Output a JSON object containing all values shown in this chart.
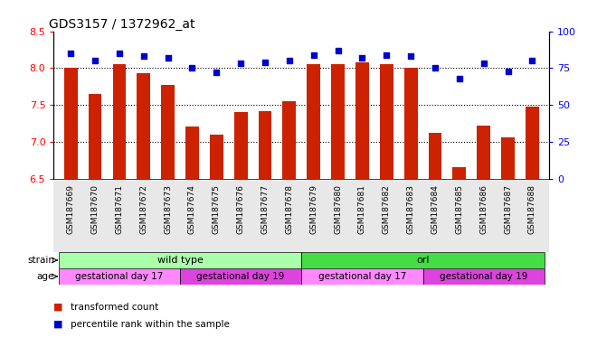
{
  "title": "GDS3157 / 1372962_at",
  "samples": [
    "GSM187669",
    "GSM187670",
    "GSM187671",
    "GSM187672",
    "GSM187673",
    "GSM187674",
    "GSM187675",
    "GSM187676",
    "GSM187677",
    "GSM187678",
    "GSM187679",
    "GSM187680",
    "GSM187681",
    "GSM187682",
    "GSM187683",
    "GSM187684",
    "GSM187685",
    "GSM187686",
    "GSM187687",
    "GSM187688"
  ],
  "bar_values": [
    8.0,
    7.65,
    8.05,
    7.93,
    7.77,
    7.2,
    7.1,
    7.4,
    7.42,
    7.55,
    8.05,
    8.05,
    8.08,
    8.05,
    8.0,
    7.12,
    6.65,
    7.22,
    7.06,
    7.48
  ],
  "percentile_values": [
    85,
    80,
    85,
    83,
    82,
    75,
    72,
    78,
    79,
    80,
    84,
    87,
    82,
    84,
    83,
    75,
    68,
    78,
    73,
    80
  ],
  "ylim_left": [
    6.5,
    8.5
  ],
  "ylim_right": [
    0,
    100
  ],
  "yticks_left": [
    6.5,
    7.0,
    7.5,
    8.0,
    8.5
  ],
  "yticks_right": [
    0,
    25,
    50,
    75,
    100
  ],
  "hlines": [
    7.0,
    7.5,
    8.0
  ],
  "bar_color": "#CC2200",
  "dot_color": "#0000CC",
  "strain_groups": [
    {
      "label": "wild type",
      "start": 0,
      "end": 10,
      "color": "#AAFFAA"
    },
    {
      "label": "orl",
      "start": 10,
      "end": 20,
      "color": "#44DD44"
    }
  ],
  "age_groups": [
    {
      "label": "gestational day 17",
      "start": 0,
      "end": 5,
      "color": "#FF88FF"
    },
    {
      "label": "gestational day 19",
      "start": 5,
      "end": 10,
      "color": "#DD44DD"
    },
    {
      "label": "gestational day 17",
      "start": 10,
      "end": 15,
      "color": "#FF88FF"
    },
    {
      "label": "gestational day 19",
      "start": 15,
      "end": 20,
      "color": "#DD44DD"
    }
  ],
  "legend_items": [
    {
      "color": "#CC2200",
      "label": "transformed count"
    },
    {
      "color": "#0000CC",
      "label": "percentile rank within the sample"
    }
  ]
}
